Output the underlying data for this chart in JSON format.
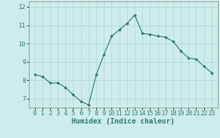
{
  "xlabel": "Humidex (Indice chaleur)",
  "x": [
    0,
    1,
    2,
    3,
    4,
    5,
    6,
    7,
    8,
    9,
    10,
    11,
    12,
    13,
    14,
    15,
    16,
    17,
    18,
    19,
    20,
    21,
    22,
    23
  ],
  "y": [
    8.3,
    8.2,
    7.85,
    7.85,
    7.6,
    7.2,
    6.85,
    6.65,
    8.3,
    9.4,
    10.4,
    10.75,
    11.1,
    11.55,
    10.55,
    10.5,
    10.4,
    10.35,
    10.1,
    9.6,
    9.2,
    9.15,
    8.75,
    8.4
  ],
  "line_color": "#2d7d6e",
  "marker": "D",
  "marker_size": 2.0,
  "line_width": 0.9,
  "bg_color": "#cdecea",
  "grid_color": "#b0d8d5",
  "ylim": [
    6.5,
    12.3
  ],
  "yticks": [
    7,
    8,
    9,
    10,
    11,
    12
  ],
  "xticks": [
    0,
    1,
    2,
    3,
    4,
    5,
    6,
    7,
    8,
    9,
    10,
    11,
    12,
    13,
    14,
    15,
    16,
    17,
    18,
    19,
    20,
    21,
    22,
    23
  ],
  "tick_fontsize": 6.5,
  "xlabel_fontsize": 7.5,
  "spine_color": "#888888"
}
